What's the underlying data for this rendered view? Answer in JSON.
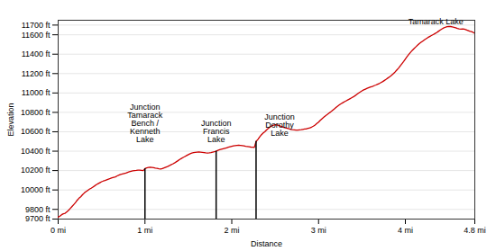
{
  "chart_data": {
    "type": "line",
    "xlabel": "Distance",
    "ylabel": "Elevation",
    "color": "#cc0000",
    "xlim": [
      0,
      4.8
    ],
    "ylim": [
      9700,
      11750
    ],
    "xticks": [
      {
        "value": 0,
        "label": "0 mi"
      },
      {
        "value": 1,
        "label": "1 mi"
      },
      {
        "value": 2,
        "label": "2 mi"
      },
      {
        "value": 3,
        "label": "3 mi"
      },
      {
        "value": 4,
        "label": "4 mi"
      },
      {
        "value": 4.8,
        "label": "4.8 mi"
      }
    ],
    "yticks": [
      {
        "value": 9700,
        "label": "9700 ft"
      },
      {
        "value": 9800,
        "label": "9800 ft"
      },
      {
        "value": 10000,
        "label": "10000 ft"
      },
      {
        "value": 10200,
        "label": "10200 ft"
      },
      {
        "value": 10400,
        "label": "10400 ft"
      },
      {
        "value": 10600,
        "label": "10600 ft"
      },
      {
        "value": 10800,
        "label": "10800 ft"
      },
      {
        "value": 11000,
        "label": "11000 ft"
      },
      {
        "value": 11200,
        "label": "11200 ft"
      },
      {
        "value": 11400,
        "label": "11400 ft"
      },
      {
        "value": 11600,
        "label": "11600 ft"
      },
      {
        "value": 11700,
        "label": "11700 ft"
      }
    ],
    "grid": true,
    "annotations": [
      {
        "text": "Junction\nTamarack\nBench /\nKenneth\nLake",
        "x": 1.0,
        "y": 10490,
        "drop_line": {
          "x": 1.0,
          "y": 10220
        }
      },
      {
        "text": "Junction\nFrancis\nLake",
        "x": 1.82,
        "y": 10490,
        "drop_line": {
          "x": 1.82,
          "y": 10400
        }
      },
      {
        "text": "Junction\nDorothy\nLake",
        "x": 2.55,
        "y": 10560,
        "drop_line": {
          "x": 2.28,
          "y": 10500
        }
      },
      {
        "text": "Tamarack Lake",
        "x": 4.35,
        "y": 11710
      }
    ],
    "x": [
      0,
      0.02,
      0.04,
      0.06,
      0.08,
      0.1,
      0.12,
      0.14,
      0.16,
      0.18,
      0.2,
      0.22,
      0.24,
      0.26,
      0.28,
      0.3,
      0.32,
      0.34,
      0.36,
      0.38,
      0.4,
      0.42,
      0.44,
      0.46,
      0.48,
      0.5,
      0.52,
      0.54,
      0.56,
      0.58,
      0.6,
      0.62,
      0.64,
      0.66,
      0.68,
      0.7,
      0.72,
      0.74,
      0.76,
      0.78,
      0.8,
      0.82,
      0.84,
      0.86,
      0.88,
      0.9,
      0.92,
      0.94,
      0.96,
      0.98,
      1.0,
      1.02,
      1.04,
      1.06,
      1.08,
      1.1,
      1.12,
      1.14,
      1.16,
      1.18,
      1.2,
      1.22,
      1.24,
      1.26,
      1.28,
      1.3,
      1.32,
      1.34,
      1.36,
      1.38,
      1.4,
      1.42,
      1.44,
      1.46,
      1.48,
      1.5,
      1.52,
      1.54,
      1.56,
      1.58,
      1.6,
      1.62,
      1.64,
      1.66,
      1.68,
      1.7,
      1.72,
      1.74,
      1.76,
      1.78,
      1.8,
      1.82,
      1.84,
      1.86,
      1.88,
      1.9,
      1.92,
      1.94,
      1.96,
      1.98,
      2.0,
      2.02,
      2.04,
      2.06,
      2.08,
      2.1,
      2.12,
      2.14,
      2.16,
      2.18,
      2.2,
      2.22,
      2.24,
      2.26,
      2.28,
      2.3,
      2.32,
      2.34,
      2.36,
      2.38,
      2.4,
      2.42,
      2.44,
      2.46,
      2.48,
      2.5,
      2.52,
      2.54,
      2.56,
      2.58,
      2.6,
      2.62,
      2.64,
      2.66,
      2.68,
      2.7,
      2.72,
      2.74,
      2.76,
      2.78,
      2.8,
      2.82,
      2.84,
      2.86,
      2.88,
      2.9,
      2.92,
      2.94,
      2.96,
      2.98,
      3.0,
      3.02,
      3.04,
      3.06,
      3.08,
      3.1,
      3.12,
      3.14,
      3.16,
      3.18,
      3.2,
      3.22,
      3.24,
      3.26,
      3.28,
      3.3,
      3.32,
      3.34,
      3.36,
      3.38,
      3.4,
      3.42,
      3.44,
      3.46,
      3.48,
      3.5,
      3.52,
      3.54,
      3.56,
      3.58,
      3.6,
      3.62,
      3.64,
      3.66,
      3.68,
      3.7,
      3.72,
      3.74,
      3.76,
      3.78,
      3.8,
      3.82,
      3.84,
      3.86,
      3.88,
      3.9,
      3.92,
      3.94,
      3.96,
      3.98,
      4.0,
      4.02,
      4.04,
      4.06,
      4.08,
      4.1,
      4.12,
      4.14,
      4.16,
      4.18,
      4.2,
      4.22,
      4.24,
      4.26,
      4.28,
      4.3,
      4.32,
      4.34,
      4.36,
      4.38,
      4.4,
      4.42,
      4.44,
      4.46,
      4.48,
      4.5,
      4.52,
      4.54,
      4.56,
      4.58,
      4.6,
      4.62,
      4.64,
      4.66,
      4.68,
      4.7,
      4.72,
      4.74,
      4.76,
      4.78,
      4.8
    ],
    "values": [
      9720,
      9730,
      9745,
      9755,
      9760,
      9775,
      9790,
      9810,
      9830,
      9850,
      9870,
      9895,
      9915,
      9930,
      9950,
      9968,
      9982,
      9995,
      10008,
      10018,
      10030,
      10042,
      10055,
      10065,
      10075,
      10085,
      10092,
      10098,
      10105,
      10112,
      10118,
      10125,
      10130,
      10135,
      10145,
      10153,
      10160,
      10165,
      10170,
      10175,
      10182,
      10188,
      10193,
      10197,
      10200,
      10202,
      10205,
      10205,
      10203,
      10200,
      10220,
      10228,
      10232,
      10235,
      10233,
      10230,
      10225,
      10222,
      10218,
      10215,
      10220,
      10228,
      10235,
      10242,
      10250,
      10260,
      10268,
      10278,
      10290,
      10302,
      10315,
      10325,
      10335,
      10345,
      10355,
      10365,
      10373,
      10380,
      10385,
      10388,
      10390,
      10392,
      10390,
      10388,
      10385,
      10382,
      10380,
      10382,
      10385,
      10390,
      10395,
      10400,
      10408,
      10415,
      10420,
      10425,
      10430,
      10435,
      10440,
      10445,
      10450,
      10455,
      10458,
      10460,
      10462,
      10460,
      10458,
      10455,
      10450,
      10448,
      10445,
      10442,
      10440,
      10438,
      10500,
      10520,
      10545,
      10568,
      10585,
      10600,
      10618,
      10635,
      10648,
      10660,
      10668,
      10672,
      10670,
      10665,
      10658,
      10652,
      10645,
      10640,
      10635,
      10630,
      10625,
      10622,
      10620,
      10618,
      10618,
      10620,
      10622,
      10625,
      10628,
      10630,
      10635,
      10640,
      10648,
      10658,
      10670,
      10685,
      10700,
      10718,
      10735,
      10750,
      10765,
      10778,
      10792,
      10805,
      10820,
      10835,
      10850,
      10865,
      10878,
      10890,
      10900,
      10910,
      10920,
      10930,
      10940,
      10950,
      10960,
      10972,
      10985,
      10998,
      11010,
      11022,
      11032,
      11040,
      11048,
      11055,
      11062,
      11068,
      11075,
      11082,
      11090,
      11098,
      11108,
      11118,
      11130,
      11142,
      11155,
      11168,
      11182,
      11198,
      11215,
      11235,
      11255,
      11278,
      11302,
      11325,
      11350,
      11375,
      11398,
      11420,
      11440,
      11458,
      11475,
      11492,
      11508,
      11522,
      11535,
      11548,
      11560,
      11572,
      11582,
      11592,
      11602,
      11612,
      11622,
      11635,
      11648,
      11660,
      11670,
      11678,
      11683,
      11685,
      11685,
      11682,
      11678,
      11672,
      11665,
      11660,
      11658,
      11660,
      11658,
      11652,
      11645,
      11638,
      11632,
      11625,
      11615
    ]
  }
}
